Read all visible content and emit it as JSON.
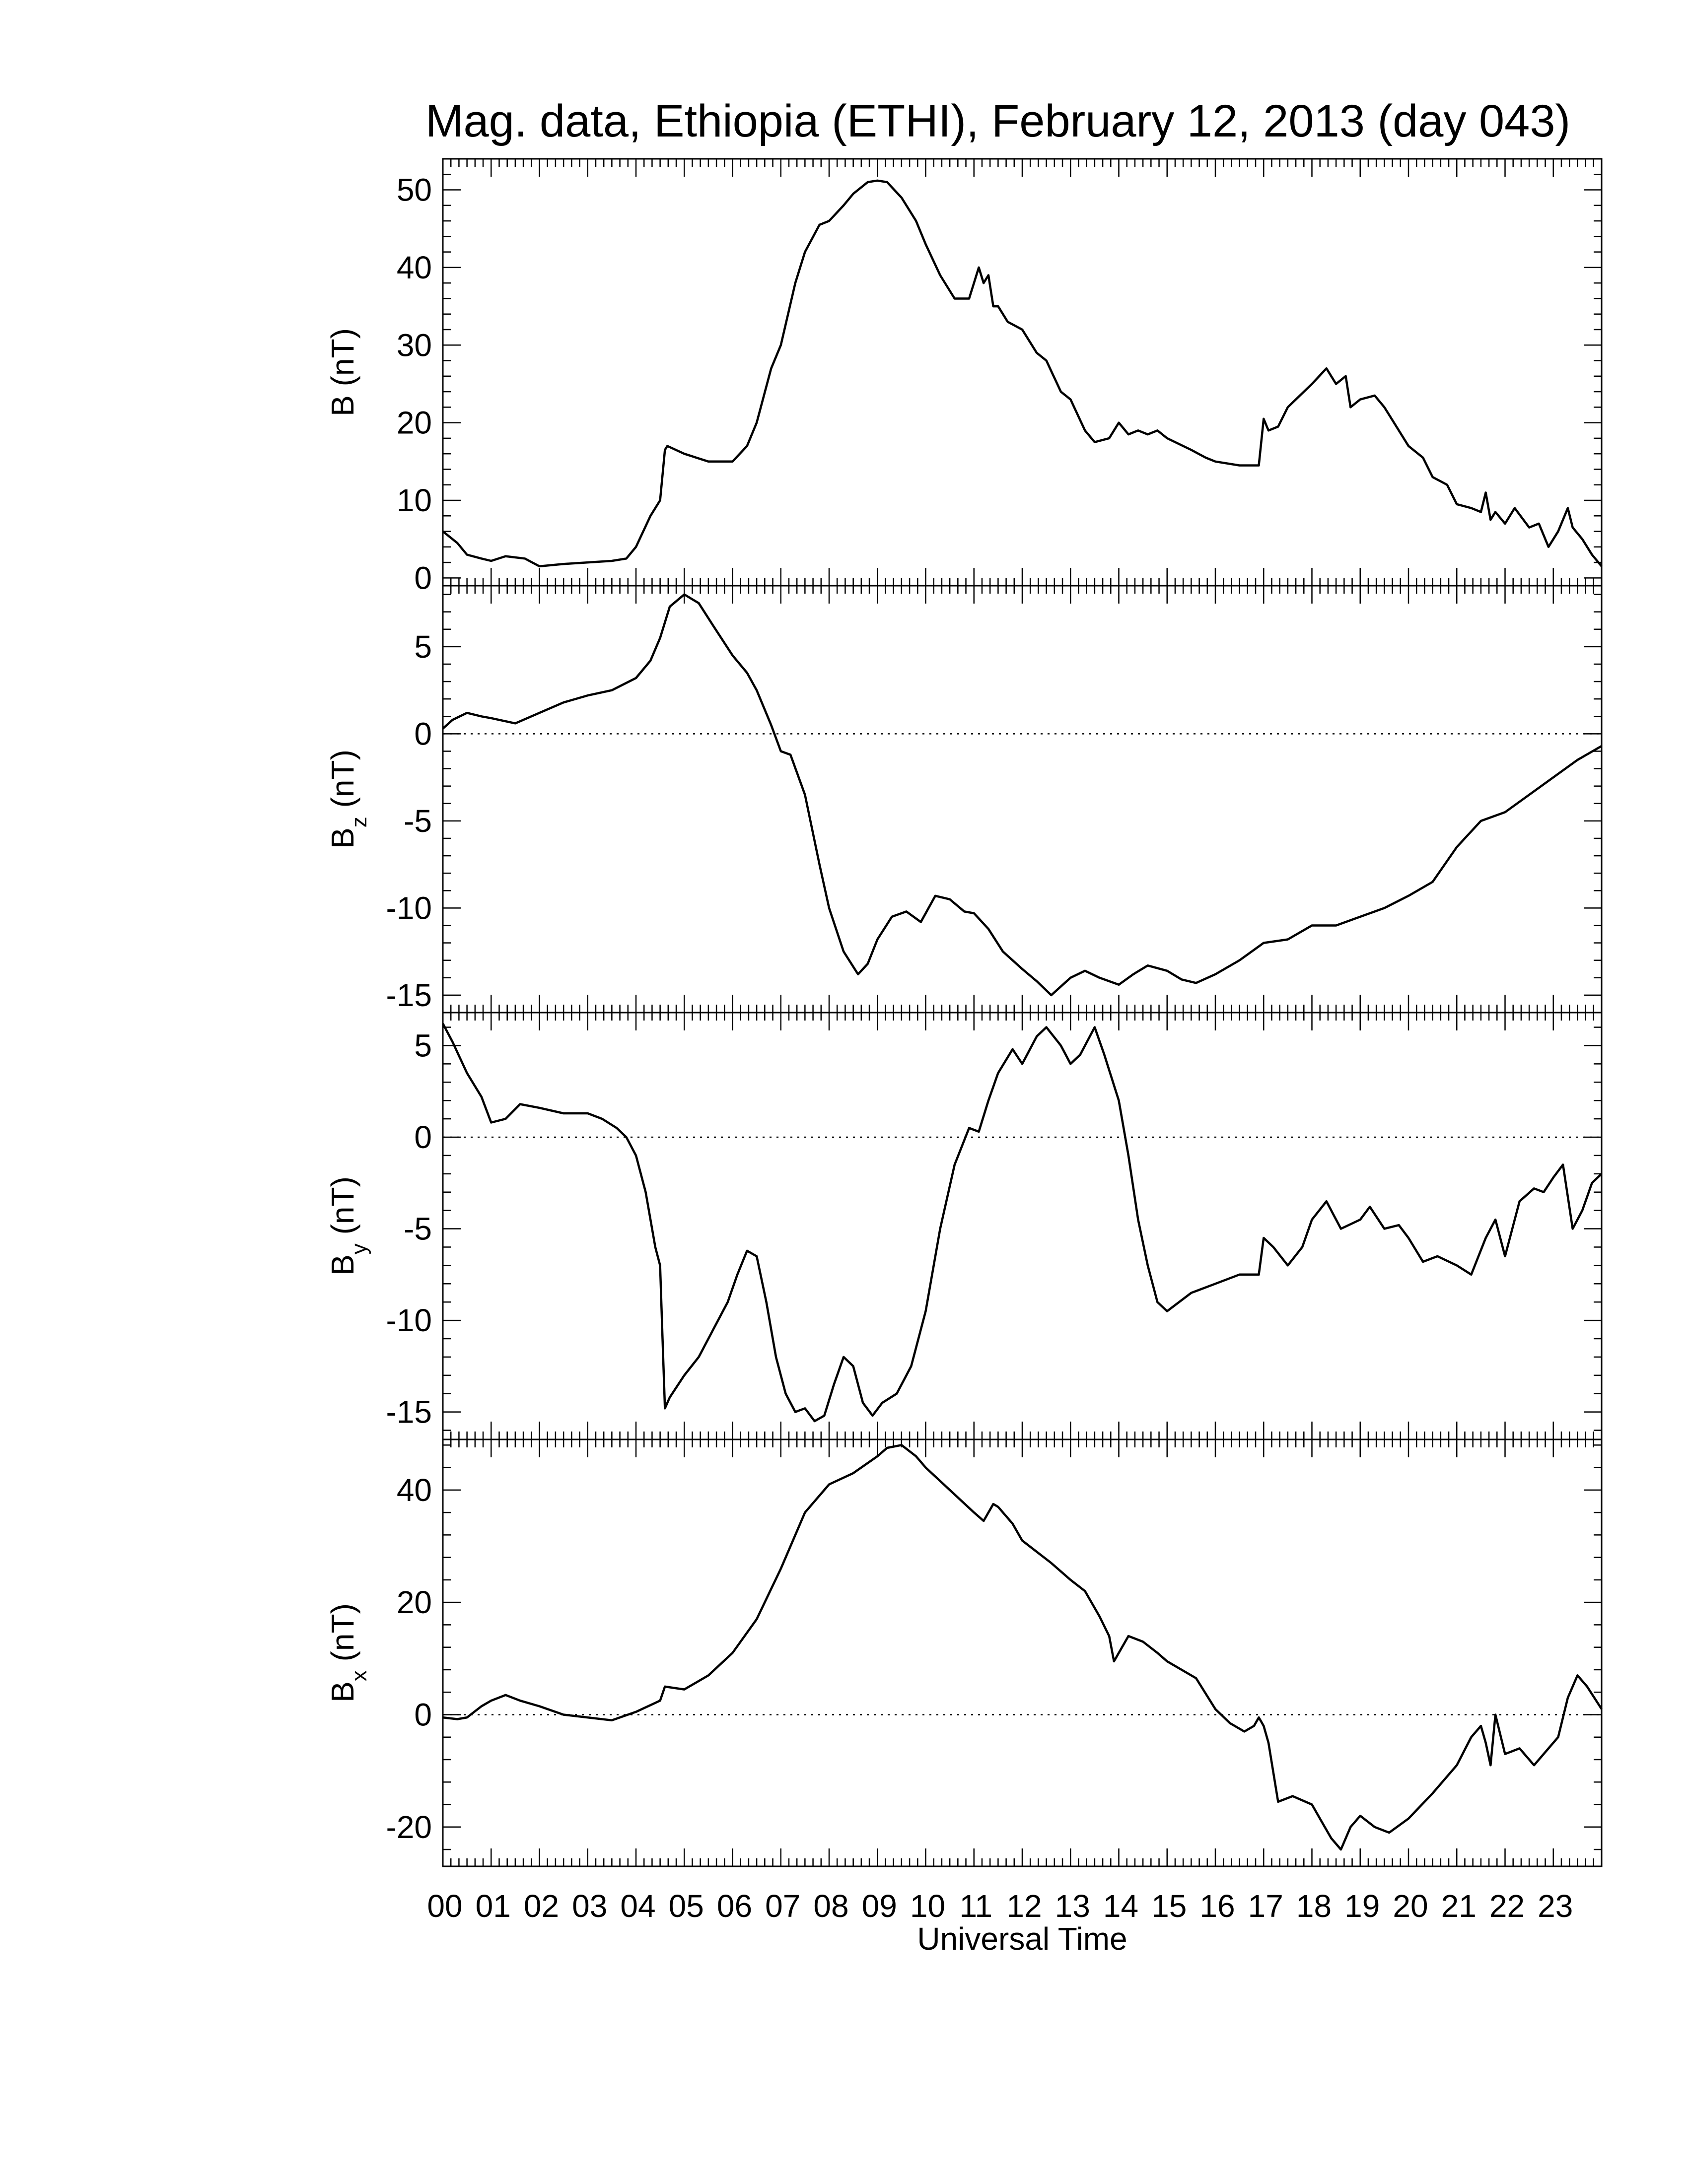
{
  "title": "Mag. data, Ethiopia (ETHI), February 12, 2013 (day 043)",
  "xlabel": "Universal Time",
  "x_tick_labels": [
    "00",
    "01",
    "02",
    "03",
    "04",
    "05",
    "06",
    "07",
    "08",
    "09",
    "10",
    "11",
    "12",
    "13",
    "14",
    "15",
    "16",
    "17",
    "18",
    "19",
    "20",
    "21",
    "22",
    "23"
  ],
  "chart_data": [
    {
      "type": "line",
      "ylabel_main": "B",
      "ylabel_sub": "",
      "ylabel_unit": "(nT)",
      "ylim": [
        -1,
        54
      ],
      "yticks": [
        0,
        10,
        20,
        30,
        40,
        50
      ],
      "xlim": [
        0,
        24
      ],
      "zero_line": false,
      "x": [
        0,
        0.3,
        0.5,
        0.8,
        1.0,
        1.3,
        1.7,
        2.0,
        2.5,
        3.0,
        3.5,
        3.8,
        4.0,
        4.3,
        4.5,
        4.6,
        4.65,
        5.0,
        5.5,
        6.0,
        6.3,
        6.5,
        6.8,
        7.0,
        7.3,
        7.5,
        7.8,
        8.0,
        8.3,
        8.5,
        8.8,
        9.0,
        9.2,
        9.5,
        9.8,
        10.0,
        10.3,
        10.6,
        10.9,
        11.1,
        11.2,
        11.3,
        11.4,
        11.5,
        11.7,
        12.0,
        12.3,
        12.5,
        12.8,
        13.0,
        13.3,
        13.5,
        13.8,
        14.0,
        14.2,
        14.4,
        14.6,
        14.8,
        15.0,
        15.5,
        15.8,
        16.0,
        16.5,
        16.9,
        17.0,
        17.1,
        17.3,
        17.5,
        18.0,
        18.3,
        18.5,
        18.7,
        18.8,
        19.0,
        19.3,
        19.5,
        20.0,
        20.3,
        20.5,
        20.8,
        21.0,
        21.3,
        21.5,
        21.6,
        21.7,
        21.8,
        22.0,
        22.2,
        22.5,
        22.7,
        22.9,
        23.1,
        23.3,
        23.4,
        23.6,
        23.8,
        24.0
      ],
      "y": [
        6,
        4.5,
        3,
        2.5,
        2.2,
        2.8,
        2.5,
        1.5,
        1.8,
        2,
        2.2,
        2.5,
        4,
        8,
        10,
        16.5,
        17,
        16,
        15,
        15,
        17,
        20,
        27,
        30,
        38,
        42,
        45.5,
        46,
        48,
        49.5,
        51,
        51.2,
        51,
        49,
        46,
        43,
        39,
        36,
        36,
        40,
        38,
        39,
        35,
        35,
        33,
        32,
        29,
        28,
        24,
        23,
        19,
        17.5,
        18,
        20,
        18.5,
        19,
        18.5,
        19,
        18,
        16.5,
        15.5,
        15,
        14.5,
        14.5,
        20.5,
        19,
        19.5,
        22,
        25,
        27,
        25,
        26,
        22,
        23,
        23.5,
        22,
        17,
        15.5,
        13,
        12,
        9.5,
        9,
        8.5,
        11,
        7.5,
        8.5,
        7,
        9,
        6.5,
        7,
        4,
        6,
        9,
        6.5,
        5,
        3,
        1.5
      ]
    },
    {
      "type": "line",
      "ylabel_main": "B",
      "ylabel_sub": "z",
      "ylabel_unit": "(nT)",
      "ylim": [
        -16,
        8.5
      ],
      "yticks": [
        5,
        0,
        -5,
        -10,
        -15
      ],
      "xlim": [
        0,
        24
      ],
      "zero_line": true,
      "x": [
        0,
        0.2,
        0.5,
        0.8,
        1.0,
        1.5,
        2.0,
        2.5,
        3.0,
        3.5,
        4.0,
        4.3,
        4.5,
        4.7,
        5.0,
        5.3,
        5.6,
        6.0,
        6.3,
        6.5,
        6.8,
        7.0,
        7.2,
        7.5,
        7.8,
        8.0,
        8.3,
        8.6,
        8.8,
        9.0,
        9.3,
        9.6,
        9.9,
        10.2,
        10.5,
        10.8,
        11.0,
        11.3,
        11.6,
        12.0,
        12.3,
        12.6,
        13.0,
        13.3,
        13.6,
        14.0,
        14.3,
        14.6,
        15.0,
        15.3,
        15.6,
        16.0,
        16.5,
        17.0,
        17.5,
        18.0,
        18.5,
        19.0,
        19.5,
        20.0,
        20.5,
        21.0,
        21.5,
        22.0,
        22.5,
        23.0,
        23.5,
        24.0
      ],
      "y": [
        0.3,
        0.8,
        1.2,
        1.0,
        0.9,
        0.6,
        1.2,
        1.8,
        2.2,
        2.5,
        3.2,
        4.2,
        5.5,
        7.3,
        8.0,
        7.5,
        6.2,
        4.5,
        3.5,
        2.5,
        0.5,
        -1.0,
        -1.2,
        -3.5,
        -7.5,
        -10,
        -12.5,
        -13.8,
        -13.2,
        -11.8,
        -10.5,
        -10.2,
        -10.8,
        -9.3,
        -9.5,
        -10.2,
        -10.3,
        -11.2,
        -12.5,
        -13.5,
        -14.2,
        -15.0,
        -14.0,
        -13.6,
        -14.0,
        -14.4,
        -13.8,
        -13.3,
        -13.6,
        -14.1,
        -14.3,
        -13.8,
        -13.0,
        -12.0,
        -11.8,
        -11.0,
        -11.0,
        -10.5,
        -10.0,
        -9.3,
        -8.5,
        -6.5,
        -5.0,
        -4.5,
        -3.5,
        -2.5,
        -1.5,
        -0.7
      ]
    },
    {
      "type": "line",
      "ylabel_main": "B",
      "ylabel_sub": "y",
      "ylabel_unit": "(nT)",
      "ylim": [
        -16.5,
        6.8
      ],
      "yticks": [
        5,
        0,
        -5,
        -10,
        -15
      ],
      "xlim": [
        0,
        24
      ],
      "zero_line": true,
      "x": [
        0,
        0.2,
        0.5,
        0.8,
        1.0,
        1.3,
        1.6,
        2.0,
        2.5,
        3.0,
        3.3,
        3.6,
        3.8,
        4.0,
        4.2,
        4.4,
        4.5,
        4.55,
        4.6,
        4.7,
        5.0,
        5.3,
        5.6,
        5.9,
        6.1,
        6.3,
        6.5,
        6.7,
        6.9,
        7.1,
        7.3,
        7.5,
        7.7,
        7.9,
        8.1,
        8.3,
        8.5,
        8.7,
        8.9,
        9.1,
        9.4,
        9.7,
        10.0,
        10.3,
        10.6,
        10.9,
        11.1,
        11.3,
        11.5,
        11.8,
        12.0,
        12.3,
        12.5,
        12.8,
        13.0,
        13.2,
        13.5,
        13.7,
        14.0,
        14.2,
        14.4,
        14.6,
        14.8,
        15.0,
        15.5,
        16.0,
        16.5,
        16.9,
        17.0,
        17.2,
        17.5,
        17.8,
        18.0,
        18.3,
        18.6,
        19.0,
        19.2,
        19.5,
        19.8,
        20.0,
        20.3,
        20.6,
        21.0,
        21.3,
        21.6,
        21.8,
        22.0,
        22.3,
        22.6,
        22.8,
        23.0,
        23.2,
        23.4,
        23.6,
        23.8,
        24.0
      ],
      "y": [
        6.2,
        5.2,
        3.5,
        2.2,
        0.8,
        1.0,
        1.8,
        1.6,
        1.3,
        1.3,
        1.0,
        0.5,
        0.0,
        -1.0,
        -3.0,
        -6.0,
        -7.0,
        -11.0,
        -14.8,
        -14.2,
        -13.0,
        -12.0,
        -10.5,
        -9.0,
        -7.5,
        -6.2,
        -6.5,
        -9.0,
        -12.0,
        -14.0,
        -15.0,
        -14.8,
        -15.5,
        -15.2,
        -13.5,
        -12.0,
        -12.5,
        -14.5,
        -15.2,
        -14.5,
        -14.0,
        -12.5,
        -9.5,
        -5.0,
        -1.5,
        0.5,
        0.3,
        2.0,
        3.5,
        4.8,
        4.0,
        5.5,
        6.0,
        5.0,
        4.0,
        4.5,
        6.0,
        4.5,
        2.0,
        -1.0,
        -4.5,
        -7.0,
        -9.0,
        -9.5,
        -8.5,
        -8.0,
        -7.5,
        -7.5,
        -5.5,
        -6.0,
        -7.0,
        -6.0,
        -4.5,
        -3.5,
        -5.0,
        -4.5,
        -3.8,
        -5.0,
        -4.8,
        -5.5,
        -6.8,
        -6.5,
        -7.0,
        -7.5,
        -5.5,
        -4.5,
        -6.5,
        -3.5,
        -2.8,
        -3.0,
        -2.2,
        -1.5,
        -5.0,
        -4.0,
        -2.5,
        -2.0
      ]
    },
    {
      "type": "line",
      "ylabel_main": "B",
      "ylabel_sub": "x",
      "ylabel_unit": "(nT)",
      "ylim": [
        -27,
        49
      ],
      "yticks": [
        40,
        20,
        0,
        -20
      ],
      "xlim": [
        0,
        24
      ],
      "zero_line": true,
      "x": [
        0,
        0.3,
        0.5,
        0.8,
        1.0,
        1.3,
        1.6,
        2.0,
        2.5,
        3.0,
        3.5,
        4.0,
        4.5,
        4.6,
        5.0,
        5.5,
        6.0,
        6.5,
        7.0,
        7.5,
        8.0,
        8.5,
        9.0,
        9.2,
        9.5,
        9.8,
        10.0,
        10.5,
        11.0,
        11.2,
        11.4,
        11.5,
        11.8,
        12.0,
        12.3,
        12.6,
        13.0,
        13.3,
        13.6,
        13.8,
        13.9,
        14.0,
        14.2,
        14.5,
        14.8,
        15.0,
        15.3,
        15.6,
        16.0,
        16.3,
        16.6,
        16.8,
        16.9,
        17.0,
        17.1,
        17.3,
        17.6,
        18.0,
        18.2,
        18.4,
        18.6,
        18.8,
        19.0,
        19.3,
        19.6,
        20.0,
        20.5,
        21.0,
        21.3,
        21.5,
        21.6,
        21.7,
        21.8,
        22.0,
        22.3,
        22.6,
        22.9,
        23.1,
        23.3,
        23.5,
        23.7,
        24.0
      ],
      "y": [
        -0.5,
        -0.8,
        -0.5,
        1.5,
        2.5,
        3.5,
        2.5,
        1.5,
        0,
        -0.5,
        -1,
        0.5,
        2.5,
        5,
        4.5,
        7,
        11,
        17,
        26,
        36,
        41,
        43,
        46,
        47.5,
        48,
        46,
        44,
        40,
        36,
        34.5,
        37.5,
        37,
        34,
        31,
        29,
        27,
        24,
        22,
        17.5,
        14,
        9.5,
        11,
        14,
        13,
        11,
        9.5,
        8,
        6.5,
        1,
        -1.5,
        -3,
        -2,
        -0.5,
        -2,
        -5,
        -15.5,
        -14.5,
        -16,
        -19,
        -22,
        -24,
        -20,
        -18,
        -20,
        -21,
        -18.5,
        -14,
        -9,
        -4,
        -2,
        -5,
        -9,
        0,
        -7,
        -6,
        -9,
        -6,
        -4,
        3,
        7,
        5,
        1
      ]
    }
  ]
}
